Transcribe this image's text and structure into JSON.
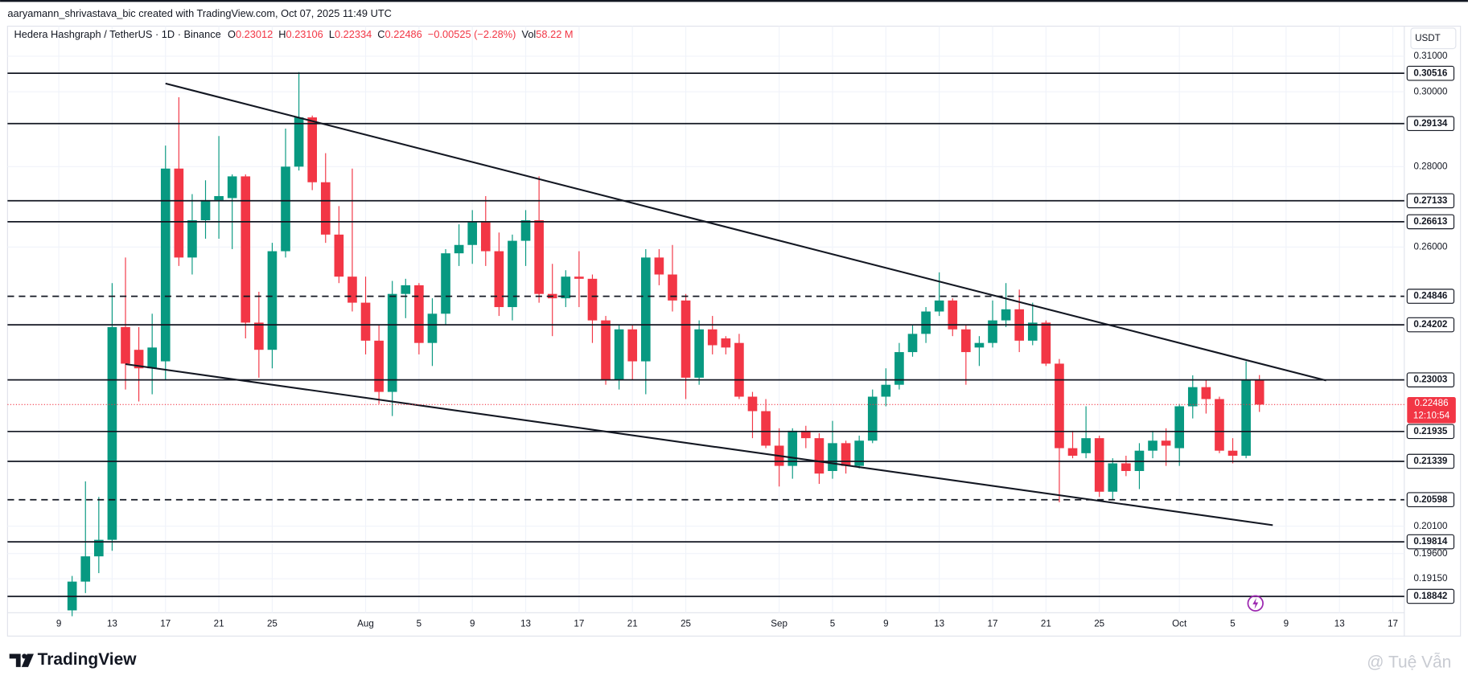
{
  "header": {
    "caption": "aaryamann_shrivastava_bic created with TradingView.com, Oct 07, 2025 11:49 UTC"
  },
  "footer": {
    "brand": "TradingView",
    "watermark": "@ Tuệ Vẫn"
  },
  "chart_data": {
    "type": "candlestick",
    "title": "Hedera Hashgraph / TetherUS · 1D · Binance",
    "ohlc_keys": [
      "O",
      "H",
      "L",
      "C"
    ],
    "change": "−0.00525 (−2.28%)",
    "volume_key": "Vol",
    "volume": "58.22 M",
    "currency": "USDT",
    "countdown": "12:10:54",
    "up_color": "#089981",
    "down_color": "#f23645",
    "log_scale": true,
    "grid": true,
    "categories": [
      "Jul 10",
      "Jul 11",
      "Jul 12",
      "Jul 13",
      "Jul 14",
      "Jul 15",
      "Jul 16",
      "Jul 17",
      "Jul 18",
      "Jul 19",
      "Jul 20",
      "Jul 21",
      "Jul 22",
      "Jul 23",
      "Jul 24",
      "Jul 25",
      "Jul 26",
      "Jul 27",
      "Jul 28",
      "Jul 29",
      "Jul 30",
      "Jul 31",
      "Aug 1",
      "Aug 2",
      "Aug 3",
      "Aug 4",
      "Aug 5",
      "Aug 6",
      "Aug 7",
      "Aug 8",
      "Aug 9",
      "Aug 10",
      "Aug 11",
      "Aug 12",
      "Aug 13",
      "Aug 14",
      "Aug 15",
      "Aug 16",
      "Aug 17",
      "Aug 18",
      "Aug 19",
      "Aug 20",
      "Aug 21",
      "Aug 22",
      "Aug 23",
      "Aug 24",
      "Aug 25",
      "Aug 26",
      "Aug 27",
      "Aug 28",
      "Aug 29",
      "Aug 30",
      "Aug 31",
      "Sep 1",
      "Sep 2",
      "Sep 3",
      "Sep 4",
      "Sep 5",
      "Sep 6",
      "Sep 7",
      "Sep 8",
      "Sep 9",
      "Sep 10",
      "Sep 11",
      "Sep 12",
      "Sep 13",
      "Sep 14",
      "Sep 15",
      "Sep 16",
      "Sep 17",
      "Sep 18",
      "Sep 19",
      "Sep 20",
      "Sep 21",
      "Sep 22",
      "Sep 23",
      "Sep 24",
      "Sep 25",
      "Sep 26",
      "Sep 27",
      "Sep 28",
      "Sep 29",
      "Sep 30",
      "Oct 1",
      "Oct 2",
      "Oct 3",
      "Oct 4",
      "Oct 5",
      "Oct 6",
      "Oct 7"
    ],
    "open": [
      0.186,
      0.191,
      0.1955,
      0.1985,
      0.2415,
      0.2365,
      0.2325,
      0.234,
      0.2795,
      0.2575,
      0.2665,
      0.2715,
      0.272,
      0.2775,
      0.2425,
      0.2365,
      0.259,
      0.28,
      0.293,
      0.276,
      0.263,
      0.253,
      0.247,
      0.2385,
      0.2275,
      0.249,
      0.251,
      0.238,
      0.2445,
      0.2585,
      0.2605,
      0.266,
      0.259,
      0.246,
      0.2615,
      0.2665,
      0.249,
      0.248,
      0.253,
      0.2525,
      0.243,
      0.23,
      0.241,
      0.234,
      0.2575,
      0.2535,
      0.2475,
      0.2305,
      0.241,
      0.239,
      0.238,
      0.2265,
      0.2235,
      0.2165,
      0.2125,
      0.2195,
      0.218,
      0.2115,
      0.217,
      0.2125,
      0.2175,
      0.2265,
      0.229,
      0.236,
      0.24,
      0.245,
      0.2475,
      0.241,
      0.237,
      0.238,
      0.243,
      0.2455,
      0.2385,
      0.2425,
      0.2335,
      0.216,
      0.215,
      0.218,
      0.2075,
      0.213,
      0.2115,
      0.2155,
      0.2175,
      0.216,
      0.2245,
      0.2285,
      0.226,
      0.2155,
      0.2145,
      0.23012
    ],
    "high": [
      0.192,
      0.2095,
      0.2065,
      0.2515,
      0.2575,
      0.2415,
      0.2445,
      0.2855,
      0.2985,
      0.273,
      0.2765,
      0.288,
      0.278,
      0.278,
      0.2495,
      0.261,
      0.29,
      0.3055,
      0.2935,
      0.2835,
      0.27,
      0.2795,
      0.253,
      0.242,
      0.252,
      0.2525,
      0.2515,
      0.248,
      0.2595,
      0.2655,
      0.269,
      0.2725,
      0.2635,
      0.263,
      0.269,
      0.2775,
      0.256,
      0.2545,
      0.259,
      0.2535,
      0.244,
      0.242,
      0.242,
      0.2595,
      0.2595,
      0.2605,
      0.249,
      0.243,
      0.244,
      0.2395,
      0.24,
      0.2275,
      0.226,
      0.22,
      0.22,
      0.2205,
      0.219,
      0.2215,
      0.2175,
      0.2185,
      0.228,
      0.2325,
      0.238,
      0.242,
      0.246,
      0.254,
      0.248,
      0.242,
      0.2395,
      0.2475,
      0.2515,
      0.25,
      0.247,
      0.243,
      0.2345,
      0.2195,
      0.2245,
      0.2185,
      0.214,
      0.2145,
      0.217,
      0.2195,
      0.22,
      0.225,
      0.231,
      0.23,
      0.2265,
      0.218,
      0.234,
      0.23106
    ],
    "low": [
      0.185,
      0.189,
      0.1925,
      0.1965,
      0.228,
      0.2255,
      0.227,
      0.23,
      0.2555,
      0.2535,
      0.262,
      0.262,
      0.2595,
      0.239,
      0.2305,
      0.2325,
      0.2575,
      0.279,
      0.274,
      0.261,
      0.2515,
      0.245,
      0.2355,
      0.225,
      0.2225,
      0.2435,
      0.2355,
      0.233,
      0.242,
      0.2555,
      0.256,
      0.2555,
      0.244,
      0.243,
      0.2555,
      0.247,
      0.2395,
      0.246,
      0.246,
      0.238,
      0.229,
      0.228,
      0.23,
      0.227,
      0.251,
      0.245,
      0.226,
      0.229,
      0.2355,
      0.2355,
      0.226,
      0.218,
      0.216,
      0.2085,
      0.21,
      0.216,
      0.209,
      0.21,
      0.211,
      0.212,
      0.217,
      0.2245,
      0.228,
      0.235,
      0.238,
      0.244,
      0.2395,
      0.229,
      0.233,
      0.237,
      0.2415,
      0.236,
      0.2375,
      0.233,
      0.2055,
      0.214,
      0.214,
      0.2065,
      0.206,
      0.2105,
      0.208,
      0.214,
      0.2125,
      0.2125,
      0.222,
      0.223,
      0.215,
      0.213,
      0.214,
      0.22334
    ],
    "close": [
      0.191,
      0.1955,
      0.1985,
      0.2415,
      0.2335,
      0.2325,
      0.237,
      0.2795,
      0.2575,
      0.2665,
      0.2715,
      0.2725,
      0.2775,
      0.2425,
      0.2365,
      0.259,
      0.28,
      0.293,
      0.276,
      0.263,
      0.253,
      0.247,
      0.2385,
      0.2275,
      0.249,
      0.251,
      0.238,
      0.2445,
      0.2585,
      0.2605,
      0.266,
      0.259,
      0.246,
      0.2615,
      0.2665,
      0.249,
      0.248,
      0.253,
      0.2525,
      0.243,
      0.23,
      0.241,
      0.234,
      0.2575,
      0.2535,
      0.2475,
      0.2305,
      0.241,
      0.2375,
      0.237,
      0.2265,
      0.2235,
      0.2165,
      0.2125,
      0.2195,
      0.218,
      0.211,
      0.217,
      0.2125,
      0.2175,
      0.2265,
      0.229,
      0.236,
      0.24,
      0.245,
      0.2475,
      0.241,
      0.236,
      0.238,
      0.243,
      0.2455,
      0.2385,
      0.2425,
      0.2335,
      0.216,
      0.2145,
      0.218,
      0.2075,
      0.213,
      0.2115,
      0.2155,
      0.2175,
      0.2165,
      0.2245,
      0.2285,
      0.226,
      0.2155,
      0.2145,
      0.23,
      0.22486
    ],
    "ylim": [
      0.1856,
      0.3187
    ],
    "yticks": [
      {
        "value": 0.31,
        "label": "0.31000"
      },
      {
        "value": 0.3,
        "label": "0.30000"
      },
      {
        "value": 0.28,
        "label": "0.28000"
      },
      {
        "value": 0.26,
        "label": "0.26000"
      },
      {
        "value": 0.201,
        "label": "0.20100"
      },
      {
        "value": 0.196,
        "label": "0.19600"
      },
      {
        "value": 0.1915,
        "label": "0.19150"
      }
    ],
    "xticks": [
      {
        "value": "Jul 9",
        "label": "9"
      },
      {
        "value": "Jul 13",
        "label": "13"
      },
      {
        "value": "Jul 17",
        "label": "17"
      },
      {
        "value": "Jul 21",
        "label": "21"
      },
      {
        "value": "Jul 25",
        "label": "25"
      },
      {
        "value": "Aug 1",
        "label": "Aug"
      },
      {
        "value": "Aug 5",
        "label": "5"
      },
      {
        "value": "Aug 9",
        "label": "9"
      },
      {
        "value": "Aug 13",
        "label": "13"
      },
      {
        "value": "Aug 17",
        "label": "17"
      },
      {
        "value": "Aug 21",
        "label": "21"
      },
      {
        "value": "Aug 25",
        "label": "25"
      },
      {
        "value": "Sep 1",
        "label": "Sep"
      },
      {
        "value": "Sep 5",
        "label": "5"
      },
      {
        "value": "Sep 9",
        "label": "9"
      },
      {
        "value": "Sep 13",
        "label": "13"
      },
      {
        "value": "Sep 17",
        "label": "17"
      },
      {
        "value": "Sep 21",
        "label": "21"
      },
      {
        "value": "Sep 25",
        "label": "25"
      },
      {
        "value": "Oct 1",
        "label": "Oct"
      },
      {
        "value": "Oct 5",
        "label": "5"
      },
      {
        "value": "Oct 9",
        "label": "9"
      },
      {
        "value": "Oct 13",
        "label": "13"
      },
      {
        "value": "Oct 17",
        "label": "17"
      }
    ],
    "levels": [
      {
        "value": 0.30516,
        "style": "solid"
      },
      {
        "value": 0.29134,
        "style": "solid"
      },
      {
        "value": 0.27133,
        "style": "solid"
      },
      {
        "value": 0.26613,
        "style": "solid"
      },
      {
        "value": 0.24846,
        "style": "dashed"
      },
      {
        "value": 0.24202,
        "style": "solid"
      },
      {
        "value": 0.23003,
        "style": "solid"
      },
      {
        "value": 0.21935,
        "style": "solid"
      },
      {
        "value": 0.21339,
        "style": "solid"
      },
      {
        "value": 0.20598,
        "style": "dashed"
      },
      {
        "value": 0.19814,
        "style": "solid"
      },
      {
        "value": 0.18842,
        "style": "solid"
      }
    ],
    "trendlines": [
      {
        "x": [
          "Jul 17",
          "Oct 12"
        ],
        "y": [
          0.3023,
          0.2299
        ]
      },
      {
        "x": [
          "Jul 14",
          "Oct 8"
        ],
        "y": [
          0.2334,
          0.2012
        ]
      }
    ]
  }
}
